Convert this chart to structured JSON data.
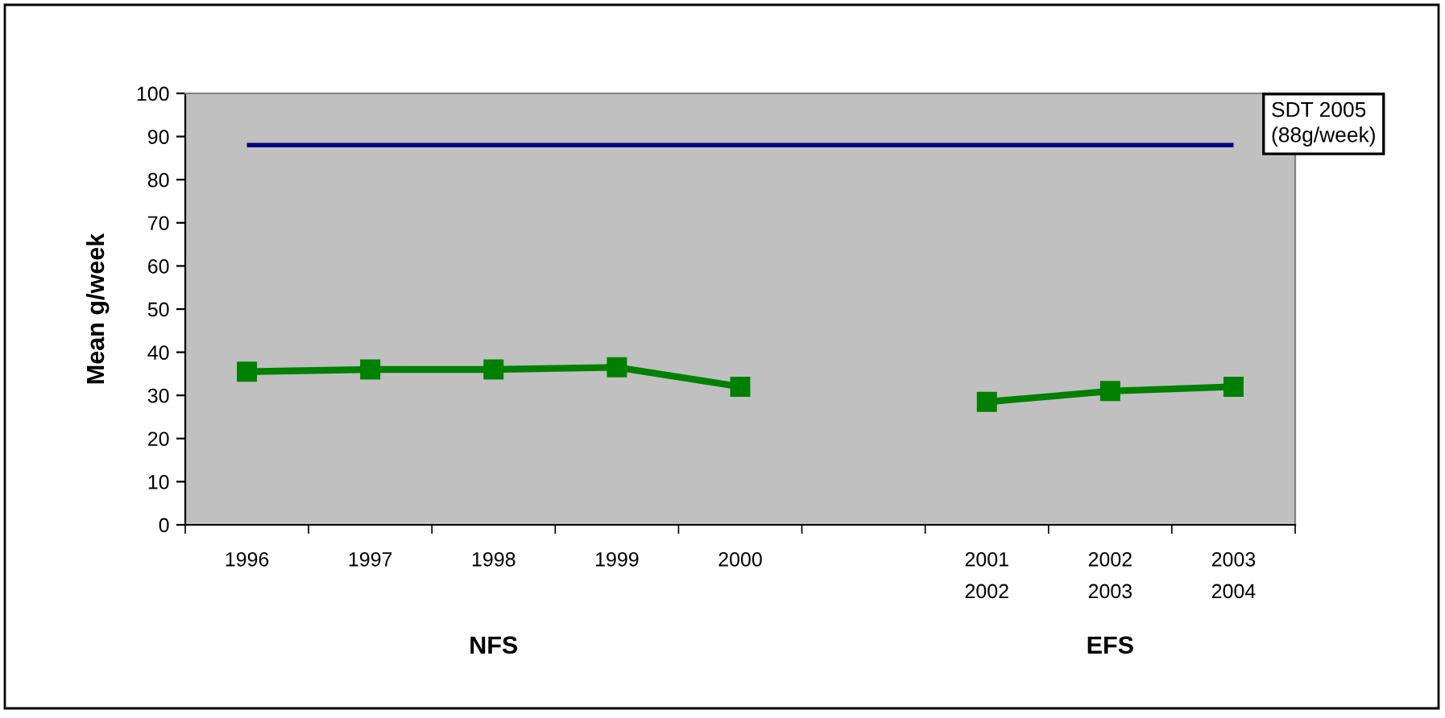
{
  "chart_data": {
    "type": "line",
    "ylabel": "Mean g/week",
    "categories": [
      "1996",
      "1997",
      "1998",
      "1999",
      "2000",
      null,
      "2001\n2002",
      "2002\n2003",
      "2003\n2004"
    ],
    "series": [
      {
        "color": "#008000",
        "values": [
          35.5,
          36,
          36,
          36.5,
          32,
          null,
          28.5,
          31,
          32
        ]
      }
    ],
    "marker": "square",
    "ylim": [
      0,
      100
    ],
    "yticks": [
      0,
      10,
      20,
      30,
      40,
      50,
      60,
      70,
      80,
      90,
      100
    ],
    "ref_lines": [
      {
        "axis": "y",
        "value": 88,
        "label": "SDT 2005\n(88g/week)",
        "color": "#000080"
      }
    ],
    "annotations": [
      "NFS",
      "EFS"
    ]
  }
}
